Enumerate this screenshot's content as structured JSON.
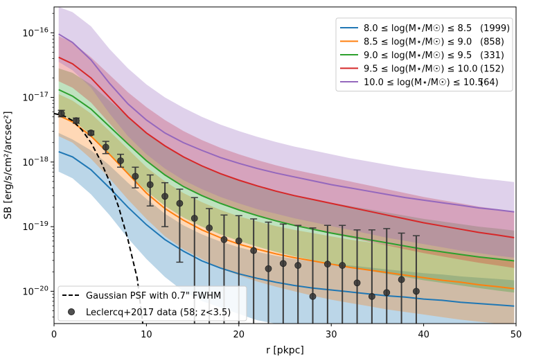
{
  "chart_data": {
    "type": "line",
    "title": "",
    "xlabel": "r [pkpc]",
    "ylabel": "SB [erg/s/cm²/arcsec²]",
    "xlim": [
      0,
      50
    ],
    "ylim_log10": [
      -20.5,
      -15.6
    ],
    "yscale": "log",
    "x_ticks": [
      0,
      10,
      20,
      30,
      40,
      50
    ],
    "x_tick_labels": [
      "0",
      "10",
      "20",
      "30",
      "40",
      "50"
    ],
    "y_ticks": [
      -20,
      -19,
      -18,
      -17,
      -16
    ],
    "y_tick_labels": [
      "10^-20",
      "10^-19",
      "10^-18",
      "10^-17",
      "10^-16"
    ],
    "x": [
      0.5,
      2,
      4,
      6,
      8,
      10,
      12,
      14,
      16,
      18,
      20,
      22,
      24,
      26,
      28,
      30,
      32,
      34,
      36,
      38,
      40,
      42,
      44,
      46,
      48,
      49.8
    ],
    "series": [
      {
        "name": "8.0 ≤ log(M⋆/M☉) ≤ 8.5",
        "count": "(1999)",
        "color": "#1f77b4",
        "values_log10": [
          -17.84,
          -17.92,
          -18.12,
          -18.4,
          -18.7,
          -18.97,
          -19.2,
          -19.38,
          -19.53,
          -19.64,
          -19.73,
          -19.8,
          -19.86,
          -19.91,
          -19.95,
          -19.98,
          -20.01,
          -20.04,
          -20.07,
          -20.09,
          -20.12,
          -20.14,
          -20.17,
          -20.19,
          -20.21,
          -20.23
        ],
        "band_low_log10": [
          -18.15,
          -18.25,
          -18.5,
          -18.82,
          -19.18,
          -19.5,
          -19.78,
          -20.0,
          -20.15,
          -20.25,
          -20.35,
          -20.45,
          -20.55,
          -20.6,
          -20.6,
          -20.6,
          -20.6,
          -20.6,
          -20.6,
          -20.6,
          -20.6,
          -20.6,
          -20.6,
          -20.6,
          -20.6,
          -20.6
        ],
        "band_high_log10": [
          -17.55,
          -17.65,
          -17.82,
          -18.05,
          -18.32,
          -18.57,
          -18.8,
          -18.98,
          -19.12,
          -19.23,
          -19.32,
          -19.39,
          -19.45,
          -19.5,
          -19.54,
          -19.57,
          -19.6,
          -19.63,
          -19.66,
          -19.69,
          -19.72,
          -19.74,
          -19.77,
          -19.79,
          -19.81,
          -19.83
        ]
      },
      {
        "name": "8.5 ≤ log(M⋆/M☉) ≤ 9.0",
        "count": "(858)",
        "color": "#ff7f0e",
        "values_log10": [
          -17.28,
          -17.38,
          -17.6,
          -17.88,
          -18.18,
          -18.48,
          -18.72,
          -18.9,
          -19.05,
          -19.17,
          -19.27,
          -19.35,
          -19.42,
          -19.48,
          -19.53,
          -19.58,
          -19.63,
          -19.67,
          -19.71,
          -19.75,
          -19.79,
          -19.83,
          -19.86,
          -19.9,
          -19.93,
          -19.96
        ],
        "band_low_log10": [
          -17.6,
          -17.7,
          -17.95,
          -18.25,
          -18.58,
          -18.88,
          -19.15,
          -19.35,
          -19.5,
          -19.65,
          -19.75,
          -19.85,
          -19.93,
          -20.0,
          -20.07,
          -20.13,
          -20.18,
          -20.23,
          -20.28,
          -20.32,
          -20.36,
          -20.4,
          -20.44,
          -20.47,
          -20.5,
          -20.52
        ],
        "band_high_log10": [
          -16.95,
          -17.05,
          -17.25,
          -17.52,
          -17.8,
          -18.08,
          -18.3,
          -18.48,
          -18.62,
          -18.74,
          -18.84,
          -18.92,
          -18.99,
          -19.05,
          -19.1,
          -19.15,
          -19.2,
          -19.24,
          -19.28,
          -19.32,
          -19.36,
          -19.4,
          -19.43,
          -19.47,
          -19.5,
          -19.53
        ]
      },
      {
        "name": "9.0 ≤ log(M⋆/M☉) ≤ 9.5",
        "count": "(331)",
        "color": "#2ca02c",
        "values_log10": [
          -16.88,
          -16.98,
          -17.18,
          -17.45,
          -17.72,
          -17.98,
          -18.2,
          -18.38,
          -18.52,
          -18.64,
          -18.74,
          -18.83,
          -18.91,
          -18.98,
          -19.04,
          -19.1,
          -19.15,
          -19.2,
          -19.25,
          -19.3,
          -19.35,
          -19.39,
          -19.43,
          -19.47,
          -19.5,
          -19.53
        ],
        "band_low_log10": [
          -17.25,
          -17.35,
          -17.58,
          -17.88,
          -18.18,
          -18.45,
          -18.68,
          -18.86,
          -19.0,
          -19.12,
          -19.22,
          -19.31,
          -19.39,
          -19.46,
          -19.52,
          -19.58,
          -19.63,
          -19.68,
          -19.73,
          -19.78,
          -19.83,
          -19.87,
          -19.91,
          -19.95,
          -19.99,
          -20.02
        ],
        "band_high_log10": [
          -16.55,
          -16.62,
          -16.8,
          -17.05,
          -17.3,
          -17.55,
          -17.75,
          -17.92,
          -18.05,
          -18.17,
          -18.27,
          -18.36,
          -18.44,
          -18.51,
          -18.57,
          -18.63,
          -18.68,
          -18.73,
          -18.78,
          -18.83,
          -18.88,
          -18.92,
          -18.96,
          -19.0,
          -19.03,
          -19.06
        ]
      },
      {
        "name": "9.5 ≤ log(M⋆/M☉) ≤ 10.0",
        "count": "(152)",
        "color": "#d62728",
        "values_log10": [
          -16.38,
          -16.48,
          -16.7,
          -17.0,
          -17.3,
          -17.55,
          -17.75,
          -17.92,
          -18.06,
          -18.18,
          -18.28,
          -18.37,
          -18.45,
          -18.52,
          -18.58,
          -18.64,
          -18.7,
          -18.76,
          -18.82,
          -18.88,
          -18.94,
          -18.99,
          -19.04,
          -19.09,
          -19.13,
          -19.17
        ],
        "band_low_log10": [
          -16.75,
          -16.85,
          -17.08,
          -17.4,
          -17.72,
          -17.98,
          -18.2,
          -18.38,
          -18.52,
          -18.65,
          -18.75,
          -18.84,
          -18.92,
          -18.99,
          -19.05,
          -19.11,
          -19.17,
          -19.23,
          -19.29,
          -19.35,
          -19.41,
          -19.46,
          -19.51,
          -19.56,
          -19.6,
          -19.64
        ],
        "band_high_log10": [
          -16.05,
          -16.15,
          -16.38,
          -16.65,
          -16.92,
          -17.15,
          -17.35,
          -17.52,
          -17.66,
          -17.78,
          -17.88,
          -17.97,
          -18.05,
          -18.12,
          -18.18,
          -18.24,
          -18.3,
          -18.36,
          -18.42,
          -18.48,
          -18.54,
          -18.59,
          -18.64,
          -18.69,
          -18.73,
          -18.77
        ]
      },
      {
        "name": "10.0 ≤ log(M⋆/M☉) ≤ 10.5",
        "count": "(64)",
        "color": "#9467bd",
        "values_log10": [
          -16.02,
          -16.15,
          -16.42,
          -16.78,
          -17.1,
          -17.35,
          -17.55,
          -17.7,
          -17.82,
          -17.93,
          -18.02,
          -18.1,
          -18.17,
          -18.23,
          -18.29,
          -18.35,
          -18.4,
          -18.45,
          -18.5,
          -18.55,
          -18.59,
          -18.63,
          -18.67,
          -18.71,
          -18.74,
          -18.77
        ],
        "band_low_log10": [
          -16.45,
          -16.58,
          -16.85,
          -17.25,
          -17.6,
          -17.88,
          -18.1,
          -18.28,
          -18.42,
          -18.54,
          -18.64,
          -18.73,
          -18.8,
          -18.87,
          -18.93,
          -18.99,
          -19.05,
          -19.11,
          -19.17,
          -19.22,
          -19.27,
          -19.32,
          -19.37,
          -19.41,
          -19.45,
          -19.48
        ],
        "band_high_log10": [
          -15.58,
          -15.68,
          -15.9,
          -16.25,
          -16.55,
          -16.8,
          -17.0,
          -17.16,
          -17.3,
          -17.42,
          -17.52,
          -17.61,
          -17.69,
          -17.76,
          -17.82,
          -17.88,
          -17.94,
          -17.99,
          -18.04,
          -18.09,
          -18.13,
          -18.17,
          -18.21,
          -18.25,
          -18.28,
          -18.31
        ]
      }
    ],
    "psf": {
      "label": "Gaussian PSF with 0.7\" FWHM",
      "x": [
        0,
        1,
        2,
        3,
        4,
        5,
        6,
        7,
        8,
        9,
        9.6
      ],
      "values_log10": [
        -17.25,
        -17.28,
        -17.36,
        -17.5,
        -17.7,
        -17.97,
        -18.3,
        -18.7,
        -19.2,
        -19.8,
        -20.5
      ]
    },
    "observations": {
      "label": "Leclercq+2017 data (58; z<3.5)",
      "x": [
        0.8,
        2.4,
        4.0,
        5.6,
        7.2,
        8.8,
        10.4,
        12.0,
        13.6,
        15.2,
        16.8,
        18.4,
        20.0,
        21.6,
        23.2,
        24.8,
        26.4,
        28.0,
        29.6,
        31.2,
        32.8,
        34.4,
        36.0,
        37.6,
        39.2
      ],
      "values_log10": [
        -17.25,
        -17.36,
        -17.55,
        -17.77,
        -17.98,
        -18.22,
        -18.35,
        -18.53,
        -18.64,
        -18.87,
        -19.02,
        -19.2,
        -19.22,
        -19.37,
        -19.65,
        -19.57,
        -19.6,
        -20.08,
        -19.58,
        -19.6,
        -19.87,
        -20.08,
        -20.02,
        -19.82,
        -20.0
      ],
      "err_low_log10": [
        -17.3,
        -17.4,
        -17.58,
        -17.87,
        -18.08,
        -18.4,
        -18.68,
        -19.0,
        -19.55,
        -20.5,
        -20.5,
        -20.5,
        -20.5,
        -20.5,
        -20.5,
        -20.5,
        -20.5,
        -20.5,
        -20.5,
        -20.5,
        -20.5,
        -20.5,
        -20.5,
        -20.5,
        -20.5
      ],
      "err_high_log10": [
        -17.2,
        -17.32,
        -17.52,
        -17.68,
        -17.88,
        -18.08,
        -18.2,
        -18.32,
        -18.42,
        -18.55,
        -18.72,
        -18.82,
        -18.83,
        -18.88,
        -18.93,
        -18.96,
        -18.98,
        -19.02,
        -18.98,
        -18.98,
        -19.05,
        -19.05,
        -19.03,
        -19.1,
        -19.14
      ]
    },
    "legend_top_right": [
      {
        "label": "8.0 ≤ log(M⋆/M☉) ≤ 8.5",
        "count": "(1999)"
      },
      {
        "label": "8.5 ≤ log(M⋆/M☉) ≤ 9.0",
        "count": "(858)"
      },
      {
        "label": "9.0 ≤ log(M⋆/M☉) ≤ 9.5",
        "count": "(331)"
      },
      {
        "label": "9.5 ≤ log(M⋆/M☉) ≤ 10.0",
        "count": "(152)"
      },
      {
        "label": "10.0 ≤ log(M⋆/M☉) ≤ 10.5",
        "count": "(64)"
      }
    ],
    "legend_bottom_left": [
      {
        "label": "Gaussian PSF with 0.7\" FWHM",
        "kind": "dashed-line"
      },
      {
        "label": "Leclercq+2017 data (58; z<3.5)",
        "kind": "marker"
      }
    ]
  }
}
